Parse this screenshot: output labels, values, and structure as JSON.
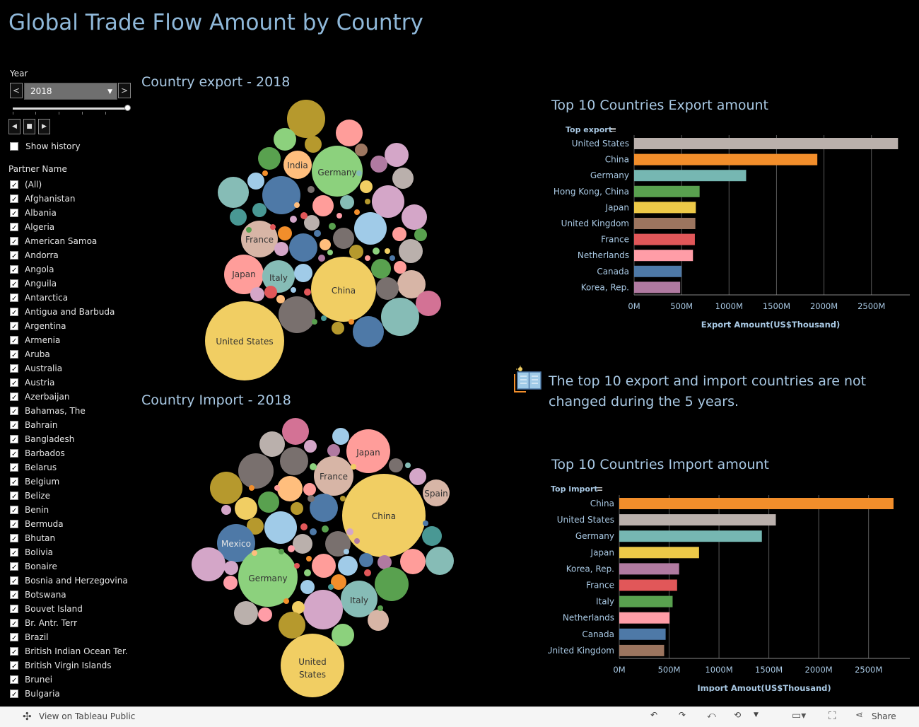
{
  "title": "Global Trade Flow Amount by Country",
  "year_filter": {
    "label": "Year",
    "selected": "2018",
    "prev_glyph": "<",
    "next_glyph": ">",
    "show_history_label": "Show history"
  },
  "partner_filter": {
    "label": "Partner Name",
    "items": [
      "(All)",
      "Afghanistan",
      "Albania",
      "Algeria",
      "American Samoa",
      "Andorra",
      "Angola",
      "Anguila",
      "Antarctica",
      "Antigua and Barbuda",
      "Argentina",
      "Armenia",
      "Aruba",
      "Australia",
      "Austria",
      "Azerbaijan",
      "Bahamas, The",
      "Bahrain",
      "Bangladesh",
      "Barbados",
      "Belarus",
      "Belgium",
      "Belize",
      "Benin",
      "Bermuda",
      "Bhutan",
      "Bolivia",
      "Bonaire",
      "Bosnia and Herzegovina",
      "Botswana",
      "Bouvet Island",
      "Br. Antr. Terr",
      "Brazil",
      "British Indian Ocean Ter.",
      "British Virgin Islands",
      "Brunei",
      "Bulgaria"
    ]
  },
  "export_bubble": {
    "title": "Country export - 2018",
    "labels": {
      "us": "United States",
      "china": "China",
      "germany": "Germany",
      "japan": "Japan",
      "france": "France",
      "italy": "Italy",
      "india": "India"
    }
  },
  "import_bubble": {
    "title": "Country Import - 2018",
    "labels": {
      "china": "China",
      "us1": "United",
      "us2": "States",
      "germany": "Germany",
      "japan": "Japan",
      "france": "France",
      "mexico": "Mexico",
      "italy": "Italy",
      "spain": "Spain"
    }
  },
  "note": {
    "text": "The top 10 export and import countries are not changed during the 5 years."
  },
  "export_chart": {
    "title": "Top 10 Countries Export amount",
    "dimension_label": "Top export",
    "xlabel": "Export  Amount(US$Thousand)",
    "ticks": [
      "0M",
      "500M",
      "1000M",
      "1500M",
      "2000M",
      "2500M"
    ]
  },
  "import_chart": {
    "title": "Top 10 Countries Import amount",
    "dimension_label": "Top import",
    "xlabel": "Import Amout(US$Thousand)",
    "ticks": [
      "0M",
      "500M",
      "1000M",
      "1500M",
      "2000M",
      "2500M"
    ]
  },
  "chart_data": [
    {
      "type": "bar",
      "orientation": "horizontal",
      "title": "Top 10 Countries Export amount",
      "xlabel": "Export  Amount(US$Thousand)",
      "ylabel": "Top export",
      "xlim": [
        0,
        2800
      ],
      "x_unit": "M",
      "grid": true,
      "categories": [
        "United States",
        "China",
        "Germany",
        "Hong Kong, China",
        "Japan",
        "United Kingdom",
        "France",
        "Netherlands",
        "Canada",
        "Korea, Rep."
      ],
      "values": [
        2780,
        1930,
        1180,
        690,
        650,
        645,
        640,
        620,
        500,
        485
      ],
      "colors": [
        "#bab0ac",
        "#f28e2b",
        "#76b7b2",
        "#59a14f",
        "#edc948",
        "#9c755f",
        "#e15759",
        "#ff9da7",
        "#4e79a7",
        "#b07aa1"
      ]
    },
    {
      "type": "bar",
      "orientation": "horizontal",
      "title": "Top 10 Countries Import amount",
      "xlabel": "Import Amout(US$Thousand)",
      "ylabel": "Top import",
      "xlim": [
        0,
        2800
      ],
      "x_unit": "M",
      "grid": true,
      "categories": [
        "China",
        "United States",
        "Germany",
        "Japan",
        "Korea, Rep.",
        "France",
        "Italy",
        "Netherlands",
        "Canada",
        "United Kingdom"
      ],
      "values": [
        2750,
        1570,
        1430,
        800,
        600,
        580,
        535,
        505,
        465,
        450
      ],
      "colors": [
        "#f28e2b",
        "#bab0ac",
        "#76b7b2",
        "#edc948",
        "#b07aa1",
        "#e15759",
        "#59a14f",
        "#ff9da7",
        "#4e79a7",
        "#9c755f"
      ]
    }
  ],
  "footer": {
    "view_on": "View on Tableau Public",
    "share": "Share"
  },
  "colors": {
    "background": "#000000",
    "title": "#8fb8d9",
    "axis_text": "#a9c9e4",
    "grid": "#666666"
  }
}
